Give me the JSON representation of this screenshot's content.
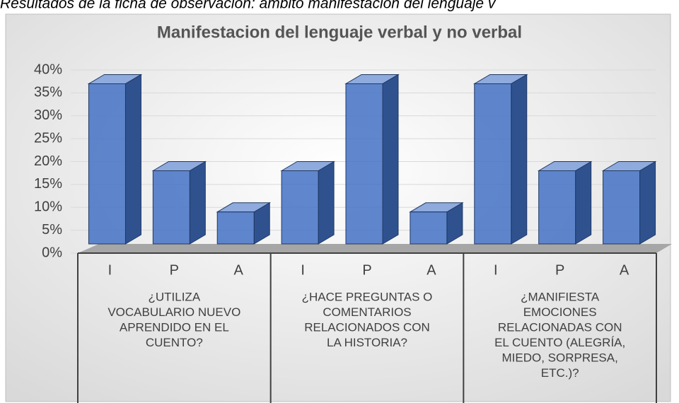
{
  "caption": "Resultados de la ficha de observación: ámbito manifestación del lenguaje v",
  "chart_data": {
    "type": "bar3d",
    "title": "Manifestacion del lenguaje verbal y no verbal",
    "categories": [
      "I",
      "P",
      "A",
      "I",
      "P",
      "A",
      "I",
      "P",
      "A"
    ],
    "groups": [
      [
        "¿UTILIZA",
        "VOCABULARIO NUEVO",
        "APRENDIDO EN EL",
        "CUENTO?"
      ],
      [
        "¿HACE PREGUNTAS O",
        "COMENTARIOS",
        "RELACIONADOS CON",
        "LA HISTORIA?"
      ],
      [
        "¿MANIFIESTA",
        "EMOCIONES",
        "RELACIONADAS CON",
        "EL CUENTO (ALEGRÍA,",
        "MIEDO, SORPRESA,",
        "ETC.)?"
      ]
    ],
    "values": [
      39,
      20,
      11,
      20,
      39,
      11,
      39,
      20,
      20
    ],
    "color": "#4472c4",
    "ylim": [
      0,
      40
    ],
    "yticks": [
      {
        "value": 0,
        "label": "0%"
      },
      {
        "value": 5,
        "label": "5%"
      },
      {
        "value": 10,
        "label": "10%"
      },
      {
        "value": 15,
        "label": "15%"
      },
      {
        "value": 20,
        "label": "20%"
      },
      {
        "value": 25,
        "label": "25%"
      },
      {
        "value": 30,
        "label": "30%"
      },
      {
        "value": 35,
        "label": "35%"
      },
      {
        "value": 40,
        "label": "40%"
      }
    ],
    "grid": true
  }
}
